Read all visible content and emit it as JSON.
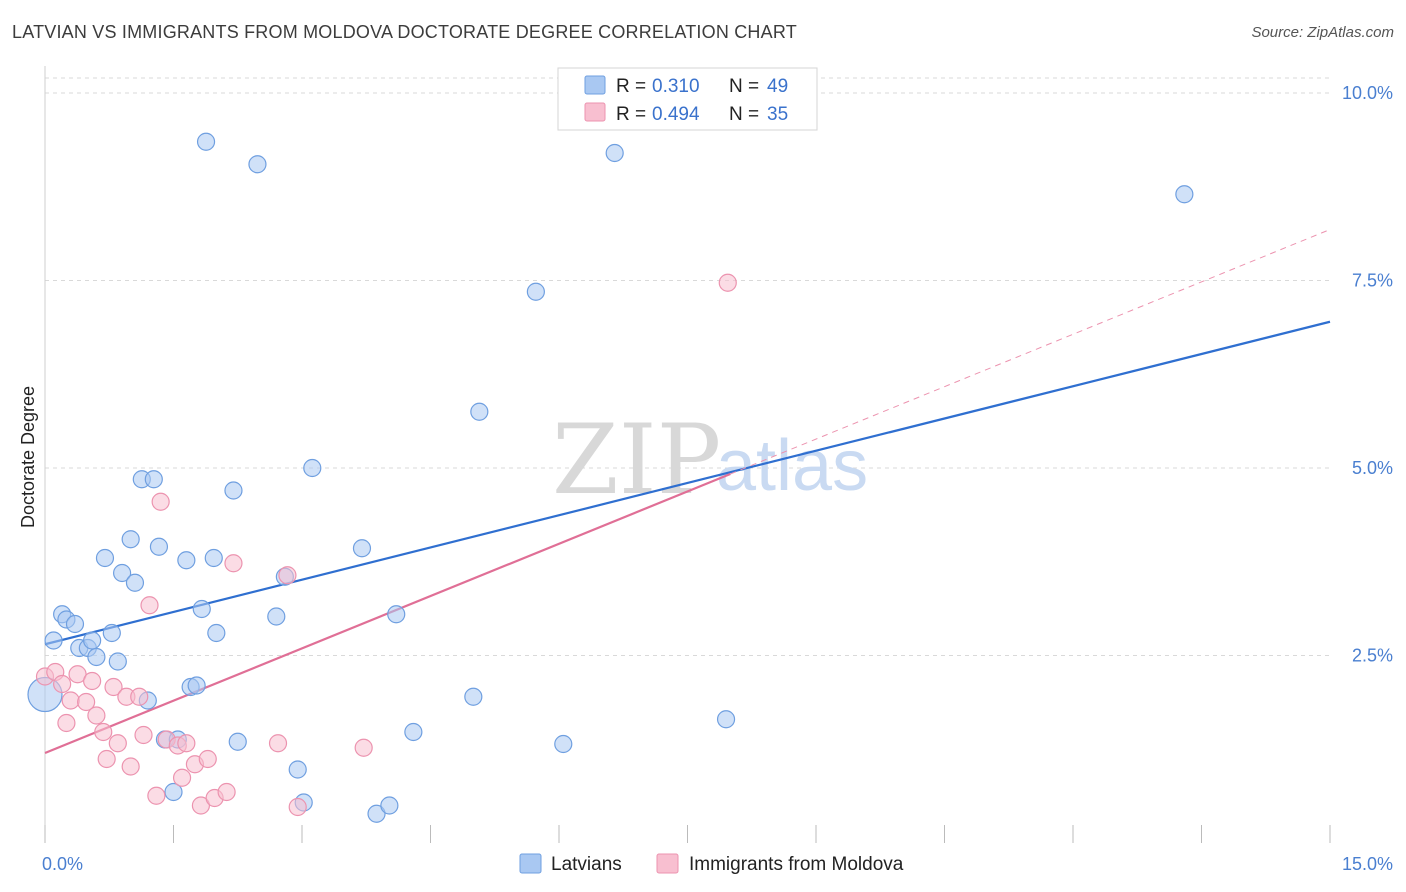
{
  "title": "LATVIAN VS IMMIGRANTS FROM MOLDOVA DOCTORATE DEGREE CORRELATION CHART",
  "source": "Source: ZipAtlas.com",
  "watermark": {
    "zip": "ZIP",
    "atlas": "atlas"
  },
  "colors": {
    "latvians_fill": "#a9c8f2",
    "latvians_stroke": "#6f9fe0",
    "latvians_line": "#2f6fd0",
    "moldova_fill": "#f8bfd0",
    "moldova_stroke": "#ec93af",
    "moldova_line": "#e06f96",
    "grid": "#d9d9d9",
    "axis_label": "#4a7fd0"
  },
  "legend_top": {
    "rows": [
      {
        "r_label": "R =",
        "r_value": "0.310",
        "n_label": "N =",
        "n_value": "49"
      },
      {
        "r_label": "R =",
        "r_value": "0.494",
        "n_label": "N =",
        "n_value": "35"
      }
    ]
  },
  "chart_data": {
    "type": "scatter",
    "title": "LATVIAN VS IMMIGRANTS FROM MOLDOVA DOCTORATE DEGREE CORRELATION CHART",
    "xlabel": "",
    "ylabel": "Doctorate Degree",
    "xlim": [
      0,
      15
    ],
    "ylim": [
      0,
      10.2
    ],
    "x_tick_labels": [
      "0.0%",
      "15.0%"
    ],
    "y_ticks": [
      2.5,
      5.0,
      7.5,
      10.0
    ],
    "y_tick_labels": [
      "2.5%",
      "5.0%",
      "7.5%",
      "10.0%"
    ],
    "x_minor_ticks": [
      0,
      1.5,
      3,
      4.5,
      6,
      7.5,
      9,
      10.5,
      12,
      13.5,
      15
    ],
    "grid": true,
    "series": [
      {
        "name": "Latvians",
        "r": 0.31,
        "n": 49,
        "trend": {
          "x": [
            0,
            15
          ],
          "y": [
            2.65,
            6.95
          ]
        },
        "points": [
          {
            "x": 0.0,
            "y": 1.98,
            "big": true
          },
          {
            "x": 0.1,
            "y": 2.7
          },
          {
            "x": 0.2,
            "y": 3.05
          },
          {
            "x": 0.25,
            "y": 2.98
          },
          {
            "x": 0.35,
            "y": 2.92
          },
          {
            "x": 0.4,
            "y": 2.6
          },
          {
            "x": 0.5,
            "y": 2.6
          },
          {
            "x": 0.55,
            "y": 2.7
          },
          {
            "x": 0.6,
            "y": 2.48
          },
          {
            "x": 0.7,
            "y": 3.8
          },
          {
            "x": 0.78,
            "y": 2.8
          },
          {
            "x": 0.85,
            "y": 2.42
          },
          {
            "x": 0.9,
            "y": 3.6
          },
          {
            "x": 1.0,
            "y": 4.05
          },
          {
            "x": 1.05,
            "y": 3.47
          },
          {
            "x": 1.13,
            "y": 4.85
          },
          {
            "x": 1.2,
            "y": 1.9
          },
          {
            "x": 1.27,
            "y": 4.85
          },
          {
            "x": 1.33,
            "y": 3.95
          },
          {
            "x": 1.4,
            "y": 1.38
          },
          {
            "x": 1.5,
            "y": 0.68
          },
          {
            "x": 1.55,
            "y": 1.38
          },
          {
            "x": 1.65,
            "y": 3.77
          },
          {
            "x": 1.7,
            "y": 2.08
          },
          {
            "x": 1.77,
            "y": 2.1
          },
          {
            "x": 1.83,
            "y": 3.12
          },
          {
            "x": 1.88,
            "y": 9.35
          },
          {
            "x": 1.97,
            "y": 3.8
          },
          {
            "x": 2.0,
            "y": 2.8
          },
          {
            "x": 2.2,
            "y": 4.7
          },
          {
            "x": 2.25,
            "y": 1.35
          },
          {
            "x": 2.48,
            "y": 9.05
          },
          {
            "x": 2.7,
            "y": 3.02
          },
          {
            "x": 2.8,
            "y": 3.55
          },
          {
            "x": 2.95,
            "y": 0.98
          },
          {
            "x": 3.02,
            "y": 0.54
          },
          {
            "x": 3.12,
            "y": 5.0
          },
          {
            "x": 3.7,
            "y": 3.93
          },
          {
            "x": 3.87,
            "y": 0.39
          },
          {
            "x": 4.02,
            "y": 0.5
          },
          {
            "x": 4.1,
            "y": 3.05
          },
          {
            "x": 4.3,
            "y": 1.48
          },
          {
            "x": 5.0,
            "y": 1.95
          },
          {
            "x": 5.07,
            "y": 5.75
          },
          {
            "x": 5.73,
            "y": 7.35
          },
          {
            "x": 6.05,
            "y": 1.32
          },
          {
            "x": 6.65,
            "y": 9.2
          },
          {
            "x": 7.95,
            "y": 1.65
          },
          {
            "x": 13.3,
            "y": 8.65
          }
        ]
      },
      {
        "name": "Immigrants from Moldova",
        "r": 0.494,
        "n": 35,
        "trend": {
          "x": [
            0,
            8.0
          ],
          "y": [
            1.2,
            4.92
          ]
        },
        "trend_extension": {
          "x": [
            8.0,
            15
          ],
          "y": [
            4.92,
            8.18
          ]
        },
        "points": [
          {
            "x": 0.0,
            "y": 2.22
          },
          {
            "x": 0.12,
            "y": 2.28
          },
          {
            "x": 0.2,
            "y": 2.12
          },
          {
            "x": 0.25,
            "y": 1.6
          },
          {
            "x": 0.3,
            "y": 1.9
          },
          {
            "x": 0.38,
            "y": 2.25
          },
          {
            "x": 0.48,
            "y": 1.88
          },
          {
            "x": 0.55,
            "y": 2.16
          },
          {
            "x": 0.6,
            "y": 1.7
          },
          {
            "x": 0.68,
            "y": 1.48
          },
          {
            "x": 0.72,
            "y": 1.12
          },
          {
            "x": 0.8,
            "y": 2.08
          },
          {
            "x": 0.85,
            "y": 1.33
          },
          {
            "x": 0.95,
            "y": 1.95
          },
          {
            "x": 1.0,
            "y": 1.02
          },
          {
            "x": 1.1,
            "y": 1.95
          },
          {
            "x": 1.15,
            "y": 1.44
          },
          {
            "x": 1.22,
            "y": 3.17
          },
          {
            "x": 1.3,
            "y": 0.63
          },
          {
            "x": 1.35,
            "y": 4.55
          },
          {
            "x": 1.42,
            "y": 1.38
          },
          {
            "x": 1.55,
            "y": 1.3
          },
          {
            "x": 1.6,
            "y": 0.87
          },
          {
            "x": 1.65,
            "y": 1.33
          },
          {
            "x": 1.75,
            "y": 1.05
          },
          {
            "x": 1.82,
            "y": 0.5
          },
          {
            "x": 1.9,
            "y": 1.12
          },
          {
            "x": 1.98,
            "y": 0.6
          },
          {
            "x": 2.12,
            "y": 0.68
          },
          {
            "x": 2.2,
            "y": 3.73
          },
          {
            "x": 2.72,
            "y": 1.33
          },
          {
            "x": 2.83,
            "y": 3.57
          },
          {
            "x": 2.95,
            "y": 0.48
          },
          {
            "x": 3.72,
            "y": 1.27
          },
          {
            "x": 7.97,
            "y": 7.47
          }
        ]
      }
    ],
    "legend": [
      "Latvians",
      "Immigrants from Moldova"
    ]
  },
  "legend_bottom": {
    "items": [
      "Latvians",
      "Immigrants from Moldova"
    ]
  }
}
